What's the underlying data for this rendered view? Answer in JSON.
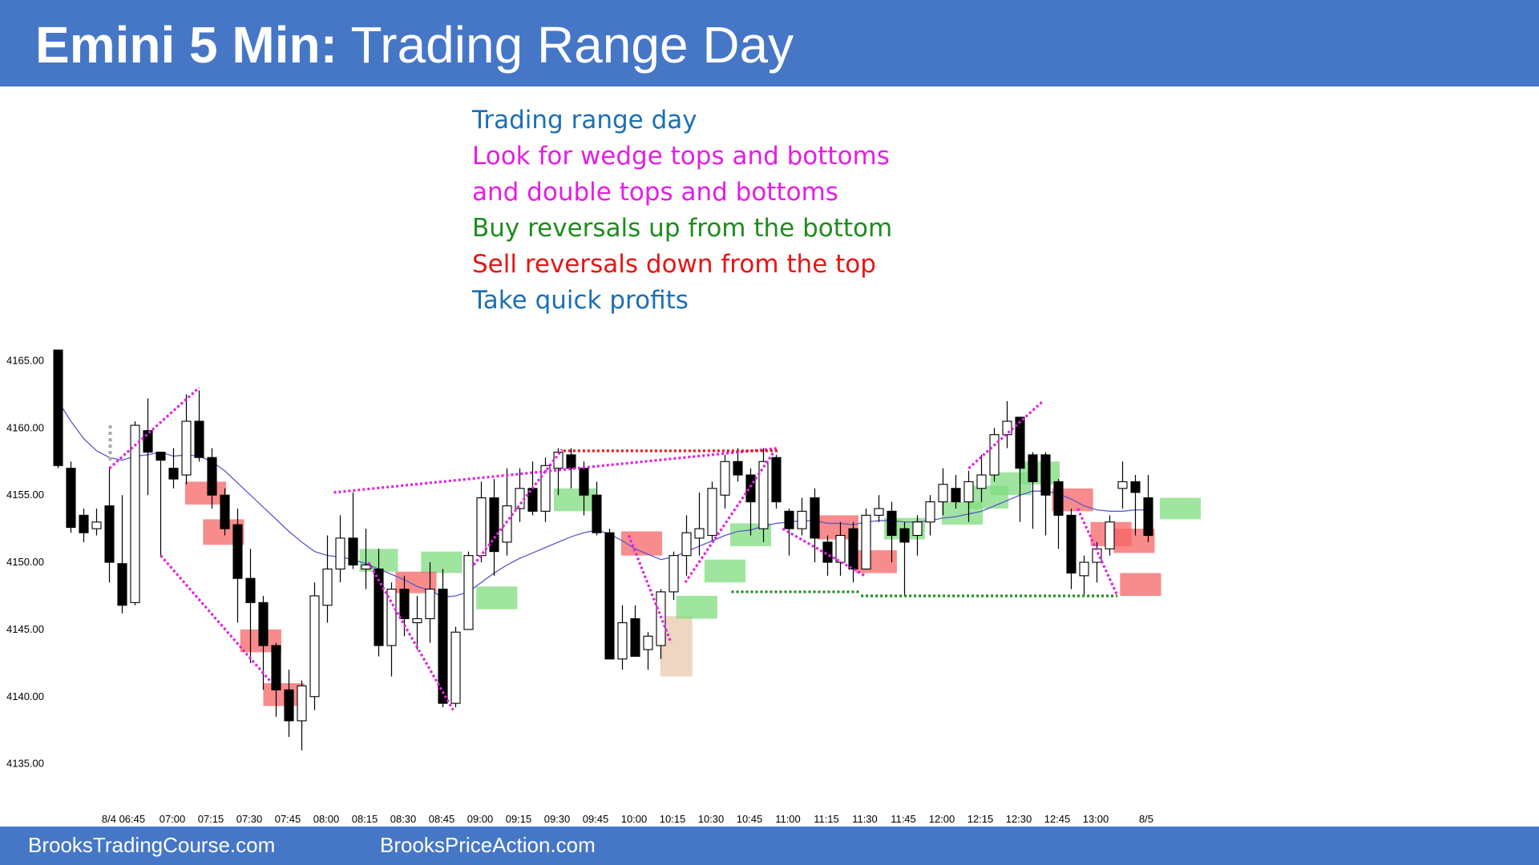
{
  "header": {
    "title_bold": "Emini 5 Min:",
    "title_rest": "Trading Range Day"
  },
  "notes": [
    {
      "text": "Trading range day",
      "color": "#1c6fb5"
    },
    {
      "text": "Look for wedge tops and bottoms",
      "color": "#e41ee4"
    },
    {
      "text": "and double tops and bottoms",
      "color": "#e41ee4"
    },
    {
      "text": "Buy reversals up from the bottom",
      "color": "#1e8c1e"
    },
    {
      "text": "Sell reversals down from the top",
      "color": "#e81414"
    },
    {
      "text": "Take quick profits",
      "color": "#1c6fb5"
    }
  ],
  "footer": {
    "left": "BrooksTradingCourse.com",
    "right": "BrooksPriceAction.com"
  },
  "colors": {
    "bar_down": "#000000",
    "bar_up": "#ffffff",
    "ema": "#5a5acd",
    "buy_zone": "#7fdc7f",
    "sell_zone": "#f56464",
    "wedge": "#e41ee4",
    "double_top": "#e81414",
    "double_bottom": "#1e8c1e",
    "pullback_zone": "#e8c4a8",
    "brand": "#4677c6"
  },
  "chart_data": {
    "type": "candlestick",
    "title": "Emini 5 Min: Trading Range Day",
    "ylim": [
      4133,
      4166
    ],
    "y_ticks": [
      "4165.00",
      "4160.00",
      "4155.00",
      "4150.00",
      "4145.00",
      "4140.00",
      "4135.00"
    ],
    "x_ticks": [
      "8/4 06:45",
      "07:00",
      "07:15",
      "07:30",
      "07:45",
      "08:00",
      "08:15",
      "08:30",
      "08:45",
      "09:00",
      "09:15",
      "09:30",
      "09:45",
      "10:00",
      "10:15",
      "10:30",
      "10:45",
      "11:00",
      "11:15",
      "11:30",
      "11:45",
      "12:00",
      "12:15",
      "12:30",
      "12:45",
      "13:00",
      "8/5"
    ],
    "bars": [
      {
        "o": 4165.8,
        "h": 4165.8,
        "l": 4157.0,
        "c": 4157.2
      },
      {
        "o": 4157.0,
        "h": 4157.5,
        "l": 4152.2,
        "c": 4152.6
      },
      {
        "o": 4153.5,
        "h": 4154.0,
        "l": 4151.5,
        "c": 4152.2
      },
      {
        "o": 4152.5,
        "h": 4154.0,
        "l": 4152.0,
        "c": 4153.0
      },
      {
        "o": 4154.2,
        "h": 4157.0,
        "l": 4148.5,
        "c": 4150.0
      },
      {
        "o": 4149.9,
        "h": 4155.0,
        "l": 4146.2,
        "c": 4146.8
      },
      {
        "o": 4147.0,
        "h": 4160.5,
        "l": 4146.8,
        "c": 4160.2
      },
      {
        "o": 4159.8,
        "h": 4162.2,
        "l": 4155.0,
        "c": 4158.2
      },
      {
        "o": 4158.2,
        "h": 4158.2,
        "l": 4150.5,
        "c": 4157.6
      },
      {
        "o": 4157.0,
        "h": 4158.5,
        "l": 4155.5,
        "c": 4156.2
      },
      {
        "o": 4156.5,
        "h": 4162.5,
        "l": 4155.8,
        "c": 4160.5
      },
      {
        "o": 4160.5,
        "h": 4162.8,
        "l": 4157.5,
        "c": 4157.8
      },
      {
        "o": 4157.8,
        "h": 4158.5,
        "l": 4154.0,
        "c": 4155.0
      },
      {
        "o": 4155.0,
        "h": 4155.5,
        "l": 4152.0,
        "c": 4152.5
      },
      {
        "o": 4152.8,
        "h": 4154.0,
        "l": 4145.5,
        "c": 4148.8
      },
      {
        "o": 4148.8,
        "h": 4151.0,
        "l": 4142.5,
        "c": 4147.0
      },
      {
        "o": 4147.0,
        "h": 4147.5,
        "l": 4140.5,
        "c": 4143.8
      },
      {
        "o": 4143.8,
        "h": 4144.0,
        "l": 4138.5,
        "c": 4140.5
      },
      {
        "o": 4140.5,
        "h": 4142.0,
        "l": 4137.0,
        "c": 4138.2
      },
      {
        "o": 4138.2,
        "h": 4141.2,
        "l": 4136.0,
        "c": 4140.8
      },
      {
        "o": 4140.0,
        "h": 4148.5,
        "l": 4139.0,
        "c": 4147.5
      },
      {
        "o": 4146.8,
        "h": 4152.0,
        "l": 4145.5,
        "c": 4149.5
      },
      {
        "o": 4149.5,
        "h": 4153.5,
        "l": 4148.5,
        "c": 4151.8
      },
      {
        "o": 4151.8,
        "h": 4155.2,
        "l": 4149.5,
        "c": 4149.8
      },
      {
        "o": 4149.5,
        "h": 4152.5,
        "l": 4148.0,
        "c": 4149.8
      },
      {
        "o": 4149.5,
        "h": 4151.0,
        "l": 4143.0,
        "c": 4143.8
      },
      {
        "o": 4143.8,
        "h": 4148.5,
        "l": 4141.5,
        "c": 4148.0
      },
      {
        "o": 4148.0,
        "h": 4149.0,
        "l": 4144.5,
        "c": 4145.8
      },
      {
        "o": 4145.5,
        "h": 4147.5,
        "l": 4143.5,
        "c": 4145.8
      },
      {
        "o": 4145.8,
        "h": 4150.0,
        "l": 4144.0,
        "c": 4148.0
      },
      {
        "o": 4148.0,
        "h": 4149.5,
        "l": 4139.2,
        "c": 4139.5
      },
      {
        "o": 4139.5,
        "h": 4145.2,
        "l": 4139.2,
        "c": 4144.8
      },
      {
        "o": 4145.0,
        "h": 4150.8,
        "l": 4145.0,
        "c": 4150.5
      },
      {
        "o": 4150.5,
        "h": 4156.0,
        "l": 4150.0,
        "c": 4154.8
      },
      {
        "o": 4154.8,
        "h": 4156.2,
        "l": 4149.0,
        "c": 4150.8
      },
      {
        "o": 4151.5,
        "h": 4157.0,
        "l": 4150.5,
        "c": 4154.2
      },
      {
        "o": 4154.0,
        "h": 4157.0,
        "l": 4153.0,
        "c": 4155.5
      },
      {
        "o": 4155.5,
        "h": 4157.5,
        "l": 4153.5,
        "c": 4153.8
      },
      {
        "o": 4153.8,
        "h": 4157.8,
        "l": 4153.0,
        "c": 4157.2
      },
      {
        "o": 4157.0,
        "h": 4158.5,
        "l": 4155.0,
        "c": 4158.2
      },
      {
        "o": 4158.0,
        "h": 4158.5,
        "l": 4155.5,
        "c": 4157.0
      },
      {
        "o": 4157.0,
        "h": 4157.5,
        "l": 4153.5,
        "c": 4155.0
      },
      {
        "o": 4155.0,
        "h": 4156.0,
        "l": 4152.0,
        "c": 4152.2
      },
      {
        "o": 4152.2,
        "h": 4152.5,
        "l": 4142.8,
        "c": 4142.8
      },
      {
        "o": 4142.8,
        "h": 4146.8,
        "l": 4142.0,
        "c": 4145.5
      },
      {
        "o": 4145.8,
        "h": 4146.8,
        "l": 4143.0,
        "c": 4143.0
      },
      {
        "o": 4143.5,
        "h": 4144.8,
        "l": 4142.0,
        "c": 4144.5
      },
      {
        "o": 4143.8,
        "h": 4148.0,
        "l": 4142.8,
        "c": 4147.8
      },
      {
        "o": 4147.8,
        "h": 4150.8,
        "l": 4147.2,
        "c": 4150.5
      },
      {
        "o": 4150.5,
        "h": 4153.5,
        "l": 4149.0,
        "c": 4152.2
      },
      {
        "o": 4151.8,
        "h": 4155.2,
        "l": 4150.5,
        "c": 4152.5
      },
      {
        "o": 4152.0,
        "h": 4156.0,
        "l": 4151.5,
        "c": 4155.5
      },
      {
        "o": 4155.0,
        "h": 4158.0,
        "l": 4154.0,
        "c": 4157.5
      },
      {
        "o": 4157.5,
        "h": 4158.5,
        "l": 4156.0,
        "c": 4156.5
      },
      {
        "o": 4156.5,
        "h": 4157.0,
        "l": 4152.0,
        "c": 4154.5
      },
      {
        "o": 4152.5,
        "h": 4158.5,
        "l": 4151.5,
        "c": 4157.5
      },
      {
        "o": 4157.8,
        "h": 4158.0,
        "l": 4154.0,
        "c": 4154.5
      },
      {
        "o": 4153.8,
        "h": 4154.0,
        "l": 4150.5,
        "c": 4152.5
      },
      {
        "o": 4152.5,
        "h": 4154.8,
        "l": 4152.0,
        "c": 4153.8
      },
      {
        "o": 4154.8,
        "h": 4155.5,
        "l": 4150.0,
        "c": 4151.8
      },
      {
        "o": 4151.5,
        "h": 4152.0,
        "l": 4149.0,
        "c": 4150.0
      },
      {
        "o": 4150.0,
        "h": 4153.0,
        "l": 4149.0,
        "c": 4152.0
      },
      {
        "o": 4152.5,
        "h": 4153.0,
        "l": 4148.5,
        "c": 4149.5
      },
      {
        "o": 4149.5,
        "h": 4154.0,
        "l": 4149.5,
        "c": 4153.5
      },
      {
        "o": 4153.5,
        "h": 4155.0,
        "l": 4153.0,
        "c": 4154.0
      },
      {
        "o": 4153.8,
        "h": 4154.5,
        "l": 4150.0,
        "c": 4152.0
      },
      {
        "o": 4152.5,
        "h": 4153.0,
        "l": 4147.5,
        "c": 4151.5
      },
      {
        "o": 4152.0,
        "h": 4153.5,
        "l": 4150.5,
        "c": 4153.0
      },
      {
        "o": 4153.0,
        "h": 4155.0,
        "l": 4152.0,
        "c": 4154.5
      },
      {
        "o": 4154.5,
        "h": 4157.0,
        "l": 4153.5,
        "c": 4155.8
      },
      {
        "o": 4155.5,
        "h": 4156.5,
        "l": 4154.0,
        "c": 4154.5
      },
      {
        "o": 4154.5,
        "h": 4156.8,
        "l": 4153.0,
        "c": 4156.0
      },
      {
        "o": 4155.5,
        "h": 4158.0,
        "l": 4154.5,
        "c": 4156.5
      },
      {
        "o": 4156.5,
        "h": 4160.0,
        "l": 4156.0,
        "c": 4159.5
      },
      {
        "o": 4159.5,
        "h": 4162.0,
        "l": 4158.5,
        "c": 4160.5
      },
      {
        "o": 4160.8,
        "h": 4160.8,
        "l": 4153.0,
        "c": 4157.0
      },
      {
        "o": 4158.0,
        "h": 4158.2,
        "l": 4152.5,
        "c": 4156.0
      },
      {
        "o": 4158.0,
        "h": 4158.2,
        "l": 4152.0,
        "c": 4155.0
      },
      {
        "o": 4156.0,
        "h": 4156.2,
        "l": 4151.0,
        "c": 4153.5
      },
      {
        "o": 4153.5,
        "h": 4154.0,
        "l": 4148.0,
        "c": 4149.2
      },
      {
        "o": 4149.0,
        "h": 4150.5,
        "l": 4147.5,
        "c": 4150.0
      },
      {
        "o": 4150.0,
        "h": 4151.5,
        "l": 4148.5,
        "c": 4151.0
      },
      {
        "o": 4151.0,
        "h": 4153.5,
        "l": 4150.5,
        "c": 4153.0
      },
      {
        "o": 4155.5,
        "h": 4157.5,
        "l": 4154.0,
        "c": 4156.0
      },
      {
        "o": 4156.0,
        "h": 4156.5,
        "l": 4152.0,
        "c": 4155.2
      },
      {
        "o": 4154.8,
        "h": 4156.5,
        "l": 4151.5,
        "c": 4152.0
      }
    ],
    "ema_values": [
      4162.0,
      4160.5,
      4159.2,
      4158.3,
      4157.8,
      4157.6,
      4157.9,
      4158.0,
      4158.2,
      4157.9,
      4158.0,
      4157.9,
      4157.5,
      4156.8,
      4155.9,
      4155.0,
      4154.1,
      4153.2,
      4152.3,
      4151.5,
      4150.8,
      4150.5,
      4150.4,
      4150.2,
      4149.9,
      4149.5,
      4149.1,
      4148.7,
      4148.2,
      4147.9,
      4147.4,
      4147.5,
      4147.8,
      4148.5,
      4149.2,
      4149.8,
      4150.3,
      4150.7,
      4151.1,
      4151.5,
      4151.9,
      4152.2,
      4152.4,
      4152.1,
      4151.6,
      4151.0,
      4150.6,
      4150.2,
      4150.4,
      4150.8,
      4151.2,
      4151.6,
      4152.0,
      4152.3,
      4152.4,
      4152.7,
      4152.9,
      4153.0,
      4153.1,
      4153.1,
      4152.9,
      4152.9,
      4152.8,
      4153.0,
      4153.1,
      4153.1,
      4153.0,
      4153.0,
      4153.1,
      4153.3,
      4153.4,
      4153.6,
      4153.8,
      4154.2,
      4154.6,
      4155.0,
      4155.3,
      4155.3,
      4155.1,
      4154.7,
      4154.2,
      4153.9,
      4153.8,
      4153.8,
      4153.9,
      4153.9
    ],
    "zones": [
      {
        "kind": "sell",
        "bar": 11.5,
        "lo": 4154.3,
        "hi": 4156.0,
        "w": 3.2
      },
      {
        "kind": "sell",
        "bar": 12.9,
        "lo": 4151.3,
        "hi": 4153.2,
        "w": 3.2
      },
      {
        "kind": "sell",
        "bar": 15.8,
        "lo": 4143.3,
        "hi": 4145.0,
        "w": 3.2
      },
      {
        "kind": "sell",
        "bar": 17.6,
        "lo": 4139.3,
        "hi": 4141.0,
        "w": 3.2
      },
      {
        "kind": "buy",
        "bar": 25.0,
        "lo": 4149.3,
        "hi": 4151.0,
        "w": 3.0
      },
      {
        "kind": "buy",
        "bar": 29.9,
        "lo": 4149.2,
        "hi": 4150.8,
        "w": 3.2
      },
      {
        "kind": "sell",
        "bar": 27.9,
        "lo": 4147.7,
        "hi": 4149.3,
        "w": 3.2
      },
      {
        "kind": "buy",
        "bar": 34.2,
        "lo": 4146.5,
        "hi": 4148.2,
        "w": 3.2
      },
      {
        "kind": "buy",
        "bar": 40.3,
        "lo": 4153.8,
        "hi": 4155.5,
        "w": 3.3
      },
      {
        "kind": "sell",
        "bar": 45.5,
        "lo": 4150.5,
        "hi": 4152.3,
        "w": 3.2
      },
      {
        "kind": "pullback",
        "bar": 48.2,
        "lo": 4141.5,
        "hi": 4146.0,
        "w": 2.5
      },
      {
        "kind": "buy",
        "bar": 49.8,
        "lo": 4145.8,
        "hi": 4147.5,
        "w": 3.2
      },
      {
        "kind": "buy",
        "bar": 52.0,
        "lo": 4148.5,
        "hi": 4150.2,
        "w": 3.2
      },
      {
        "kind": "buy",
        "bar": 54.0,
        "lo": 4151.2,
        "hi": 4152.9,
        "w": 3.2
      },
      {
        "kind": "sell",
        "bar": 60.8,
        "lo": 4151.7,
        "hi": 4153.5,
        "w": 3.2
      },
      {
        "kind": "sell",
        "bar": 63.8,
        "lo": 4149.2,
        "hi": 4150.9,
        "w": 3.2
      },
      {
        "kind": "buy",
        "bar": 66.0,
        "lo": 4151.7,
        "hi": 4153.3,
        "w": 3.2
      },
      {
        "kind": "buy",
        "bar": 70.5,
        "lo": 4152.8,
        "hi": 4154.5,
        "w": 3.2
      },
      {
        "kind": "buy",
        "bar": 72.5,
        "lo": 4154.0,
        "hi": 4155.7,
        "w": 3.2
      },
      {
        "kind": "buy",
        "bar": 74.3,
        "lo": 4155.0,
        "hi": 4156.7,
        "w": 3.2
      },
      {
        "kind": "buy",
        "bar": 76.5,
        "lo": 4155.8,
        "hi": 4157.5,
        "w": 3.2
      },
      {
        "kind": "sell",
        "bar": 79.1,
        "lo": 4153.8,
        "hi": 4155.5,
        "w": 3.2
      },
      {
        "kind": "sell",
        "bar": 82.1,
        "lo": 4151.2,
        "hi": 4153.0,
        "w": 3.2
      },
      {
        "kind": "sell",
        "bar": 83.9,
        "lo": 4150.7,
        "hi": 4152.5,
        "w": 3.2
      },
      {
        "kind": "sell",
        "bar": 84.4,
        "lo": 4147.5,
        "hi": 4149.2,
        "w": 3.2
      },
      {
        "kind": "buy",
        "bar": 87.5,
        "lo": 4153.2,
        "hi": 4154.8,
        "w": 3.2
      }
    ],
    "lines": [
      {
        "kind": "wedge",
        "from": [
          4.0,
          4157.0
        ],
        "to": [
          11.0,
          4163.0
        ]
      },
      {
        "kind": "wedge",
        "from": [
          8.0,
          4150.5
        ],
        "to": [
          16.5,
          4141.2
        ]
      },
      {
        "kind": "wedge",
        "from": [
          21.5,
          4155.2
        ],
        "to": [
          56.2,
          4158.5
        ]
      },
      {
        "kind": "wedge",
        "from": [
          24.2,
          4150.0
        ],
        "to": [
          30.8,
          4139.0
        ]
      },
      {
        "kind": "wedge",
        "from": [
          32.4,
          4149.8
        ],
        "to": [
          39.3,
          4158.4
        ]
      },
      {
        "kind": "wedge",
        "from": [
          44.5,
          4152.0
        ],
        "to": [
          47.8,
          4144.0
        ]
      },
      {
        "kind": "wedge",
        "from": [
          48.9,
          4148.5
        ],
        "to": [
          55.8,
          4158.2
        ]
      },
      {
        "kind": "wedge",
        "from": [
          56.5,
          4152.5
        ],
        "to": [
          62.9,
          4149.0
        ]
      },
      {
        "kind": "wedge",
        "from": [
          71.0,
          4157.0
        ],
        "to": [
          76.8,
          4162.0
        ]
      },
      {
        "kind": "wedge",
        "from": [
          79.5,
          4154.0
        ],
        "to": [
          82.6,
          4147.5
        ]
      },
      {
        "kind": "double_top",
        "from": [
          39.4,
          4158.3
        ],
        "to": [
          56.2,
          4158.3
        ]
      },
      {
        "kind": "double_bottom",
        "from": [
          52.5,
          4147.8
        ],
        "to": [
          62.6,
          4147.8
        ]
      },
      {
        "kind": "double_bottom",
        "from": [
          62.6,
          4147.5
        ],
        "to": [
          82.6,
          4147.5
        ]
      }
    ],
    "gray_marker": {
      "bar": 4.0,
      "lo": 4157.5,
      "hi": 4160.2
    }
  }
}
